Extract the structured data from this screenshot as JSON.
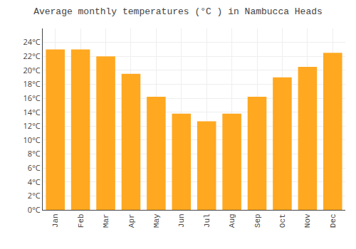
{
  "chart_data": {
    "type": "bar",
    "title": "Average monthly temperatures (°C ) in Nambucca Heads",
    "categories": [
      "Jan",
      "Feb",
      "Mar",
      "Apr",
      "May",
      "Jun",
      "Jul",
      "Aug",
      "Sep",
      "Oct",
      "Nov",
      "Dec"
    ],
    "values": [
      23.0,
      23.0,
      22.0,
      19.5,
      16.2,
      13.8,
      12.7,
      13.8,
      16.2,
      19.0,
      20.5,
      22.5
    ],
    "color": "#FFA820",
    "ylim": [
      0,
      26
    ],
    "yticks": [
      {
        "value": 0,
        "label": "0°C"
      },
      {
        "value": 2,
        "label": "2°C"
      },
      {
        "value": 4,
        "label": "4°C"
      },
      {
        "value": 6,
        "label": "6°C"
      },
      {
        "value": 8,
        "label": "8°C"
      },
      {
        "value": 10,
        "label": "10°C"
      },
      {
        "value": 12,
        "label": "12°C"
      },
      {
        "value": 14,
        "label": "14°C"
      },
      {
        "value": 16,
        "label": "16°C"
      },
      {
        "value": 18,
        "label": "18°C"
      },
      {
        "value": 20,
        "label": "20°C"
      },
      {
        "value": 22,
        "label": "22°C"
      },
      {
        "value": 24,
        "label": "24°C"
      }
    ],
    "grid": true
  }
}
